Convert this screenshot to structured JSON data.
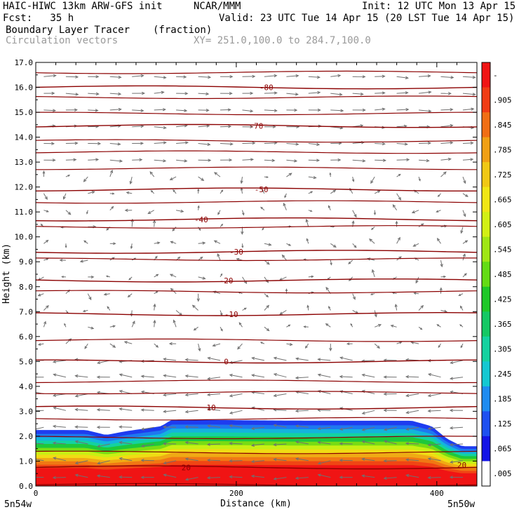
{
  "header": {
    "model": "HAIC-HIWC 13km ARW-GFS init",
    "org": "NCAR/MMM",
    "init": "Init: 12 UTC Mon 13 Apr 15",
    "fcst": "Fcst:   35 h",
    "valid": "Valid: 23 UTC Tue 14 Apr 15 (20 LST Tue 14 Apr 15)",
    "field": "Boundary Layer Tracer",
    "units": "(fraction)",
    "vectors": "Circulation vectors",
    "xy": "XY= 251.0,100.0 to 284.7,100.0"
  },
  "chart_data": {
    "type": "heatmap",
    "xlabel": "Distance (km)",
    "ylabel": "Height (km)",
    "xlim": [
      0,
      440
    ],
    "ylim": [
      0,
      17
    ],
    "x_ticks": [
      0,
      200,
      400
    ],
    "y_ticks": [
      "0.0",
      "1.0",
      "2.0",
      "3.0",
      "4.0",
      "5.0",
      "6.0",
      "7.0",
      "8.0",
      "9.0",
      "10.0",
      "11.0",
      "12.0",
      "13.0",
      "14.0",
      "15.0",
      "16.0",
      "17.0"
    ],
    "endpoint_labels": {
      "left": "5n54w",
      "right": "5n50w"
    },
    "colorbar": {
      "labels": [
        "-",
        ".905",
        ".845",
        ".785",
        ".725",
        ".665",
        ".605",
        ".545",
        ".485",
        ".425",
        ".365",
        ".305",
        ".245",
        ".185",
        ".125",
        ".065",
        ".005"
      ],
      "colors": [
        "#ffffff",
        "#1414e6",
        "#1e50f0",
        "#1e8cf0",
        "#14c8d2",
        "#14d2a0",
        "#14c864",
        "#1ec828",
        "#64dc14",
        "#a0e614",
        "#d2f014",
        "#f0e614",
        "#f0c814",
        "#f0a014",
        "#f06e14",
        "#f03c14",
        "#f01414"
      ]
    },
    "tracer_top_km": [
      {
        "x": 0,
        "y": 2.25
      },
      {
        "x": 50,
        "y": 2.25
      },
      {
        "x": 70,
        "y": 2.05
      },
      {
        "x": 90,
        "y": 2.2
      },
      {
        "x": 125,
        "y": 2.4
      },
      {
        "x": 135,
        "y": 2.65
      },
      {
        "x": 180,
        "y": 2.65
      },
      {
        "x": 270,
        "y": 2.62
      },
      {
        "x": 375,
        "y": 2.62
      },
      {
        "x": 395,
        "y": 2.4
      },
      {
        "x": 410,
        "y": 1.9
      },
      {
        "x": 425,
        "y": 1.6
      },
      {
        "x": 440,
        "y": 1.6
      }
    ],
    "temperature_contours": [
      {
        "label": "20",
        "y": 0.75,
        "label_x": 150
      },
      {
        "label": "10",
        "y": 3.15,
        "label_x": 175
      },
      {
        "label": "0",
        "y": 5.0,
        "label_x": 190
      },
      {
        "label": "-10",
        "y": 6.9,
        "label_x": 195
      },
      {
        "label": "-20",
        "y": 8.25,
        "label_x": 190
      },
      {
        "label": "-30",
        "y": 9.4,
        "label_x": 200
      },
      {
        "label": "-40",
        "y": 10.7,
        "label_x": 165
      },
      {
        "label": "-50",
        "y": 11.9,
        "label_x": 225
      },
      {
        "label": "-70",
        "y": 14.45,
        "label_x": 220
      },
      {
        "label": "-80",
        "y": 16.0,
        "label_x": 230
      }
    ],
    "extra_contour_levels_km": [
      0.05,
      1.35,
      1.95,
      2.7,
      3.75,
      4.2,
      5.85,
      7.8,
      9.1,
      10.4,
      11.4,
      12.75,
      13.4,
      13.85,
      14.95,
      15.6,
      16.6
    ],
    "right_label": {
      "label": "20",
      "y": 0.85
    }
  }
}
